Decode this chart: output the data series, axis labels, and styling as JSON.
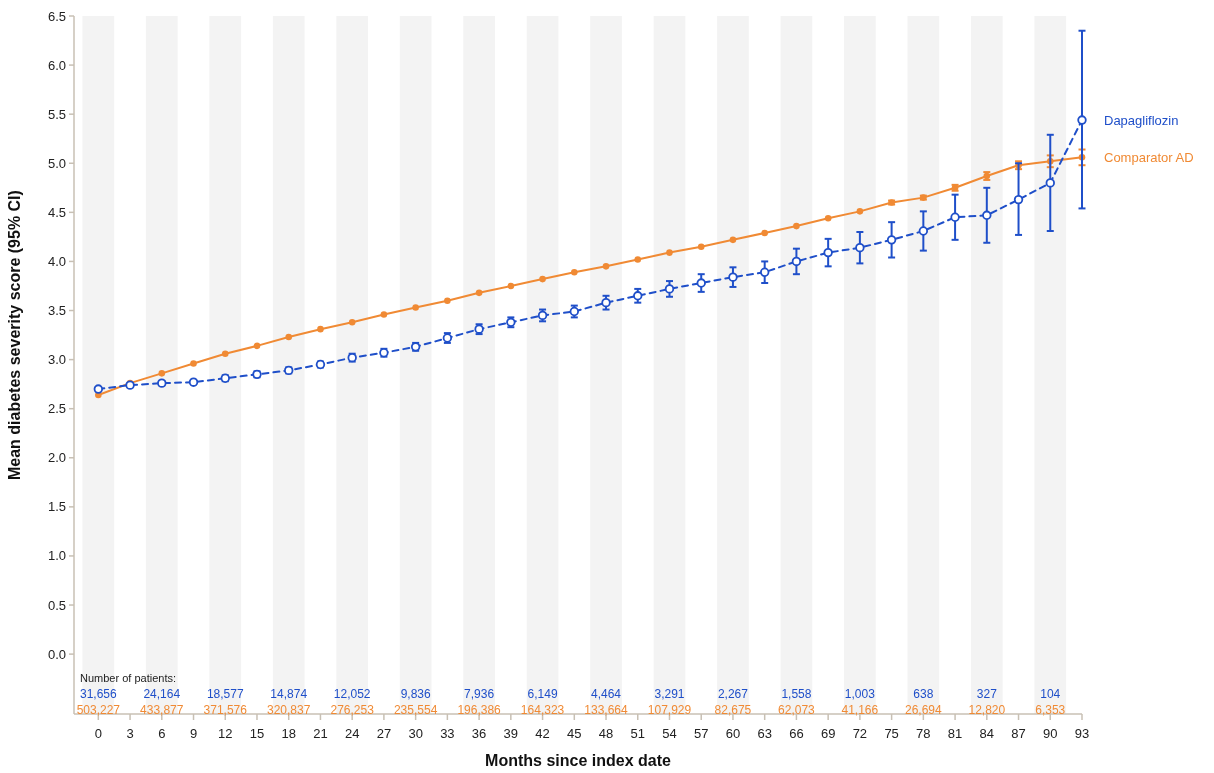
{
  "chart_data": {
    "type": "line",
    "xlabel": "Months since index date",
    "ylabel": "Mean diabetes severity score (95% CI)",
    "x": [
      0,
      3,
      6,
      9,
      12,
      15,
      18,
      21,
      24,
      27,
      30,
      33,
      36,
      39,
      42,
      45,
      48,
      51,
      54,
      57,
      60,
      63,
      66,
      69,
      72,
      75,
      78,
      81,
      84,
      87,
      90,
      93
    ],
    "xlim": [
      -2.3,
      93
    ],
    "xticks": [
      0,
      3,
      6,
      9,
      12,
      15,
      18,
      21,
      24,
      27,
      30,
      33,
      36,
      39,
      42,
      45,
      48,
      51,
      54,
      57,
      60,
      63,
      66,
      69,
      72,
      75,
      78,
      81,
      84,
      87,
      90,
      93
    ],
    "ylim": [
      -0.61,
      6.5
    ],
    "yticks": [
      {
        "value": 0,
        "label": "0.0"
      },
      0.5,
      {
        "value": 1,
        "label": "1.0"
      },
      1.5,
      {
        "value": 2,
        "label": "2.0"
      },
      2.5,
      {
        "value": 3,
        "label": "3.0"
      },
      3.5,
      {
        "value": 4,
        "label": "4.0"
      },
      4.5,
      {
        "value": 5,
        "label": "5.0"
      },
      5.5,
      {
        "value": 6,
        "label": "6.0"
      },
      6.5
    ],
    "grid": false,
    "legend": "right",
    "marker": "circle",
    "series": [
      {
        "name": "Dapagliflozin",
        "color": "#1f4fc9",
        "line_style": "dashed",
        "values": [
          2.7,
          2.74,
          2.76,
          2.77,
          2.81,
          2.85,
          2.89,
          2.95,
          3.02,
          3.07,
          3.13,
          3.22,
          3.31,
          3.38,
          3.45,
          3.49,
          3.58,
          3.65,
          3.72,
          3.78,
          3.84,
          3.89,
          4.0,
          4.09,
          4.14,
          4.22,
          4.31,
          4.45,
          4.47,
          4.63,
          4.8,
          5.44
        ],
        "errors": [
          0.02,
          0.02,
          0.02,
          0.02,
          0.03,
          0.03,
          0.03,
          0.03,
          0.04,
          0.04,
          0.04,
          0.05,
          0.05,
          0.05,
          0.06,
          0.06,
          0.07,
          0.07,
          0.08,
          0.09,
          0.1,
          0.11,
          0.13,
          0.14,
          0.16,
          0.18,
          0.2,
          0.23,
          0.28,
          [
            4.27,
            5.0
          ],
          [
            4.31,
            5.29
          ],
          [
            4.54,
            6.35
          ]
        ]
      },
      {
        "name": "Comparator AD",
        "color": "#f08a34",
        "line_style": "solid",
        "values": [
          2.64,
          2.76,
          2.86,
          2.96,
          3.06,
          3.14,
          3.23,
          3.31,
          3.38,
          3.46,
          3.53,
          3.6,
          3.68,
          3.75,
          3.82,
          3.89,
          3.95,
          4.02,
          4.09,
          4.15,
          4.22,
          4.29,
          4.36,
          4.44,
          4.51,
          4.6,
          4.65,
          4.75,
          4.87,
          4.98,
          5.02,
          5.06
        ],
        "errors": [
          null,
          null,
          null,
          null,
          null,
          null,
          null,
          null,
          null,
          null,
          null,
          null,
          null,
          null,
          null,
          null,
          null,
          null,
          null,
          null,
          null,
          null,
          null,
          null,
          null,
          0.02,
          0.02,
          0.03,
          0.04,
          0.04,
          0.06,
          0.08
        ]
      }
    ],
    "bands": [
      {
        "axis": "x",
        "from": -1.5,
        "to": 1.5,
        "color": "#f3f3f3"
      },
      {
        "axis": "x",
        "from": 4.5,
        "to": 7.5,
        "color": "#f3f3f3"
      },
      {
        "axis": "x",
        "from": 10.5,
        "to": 13.5,
        "color": "#f3f3f3"
      },
      {
        "axis": "x",
        "from": 16.5,
        "to": 19.5,
        "color": "#f3f3f3"
      },
      {
        "axis": "x",
        "from": 22.5,
        "to": 25.5,
        "color": "#f3f3f3"
      },
      {
        "axis": "x",
        "from": 28.5,
        "to": 31.5,
        "color": "#f3f3f3"
      },
      {
        "axis": "x",
        "from": 34.5,
        "to": 37.5,
        "color": "#f3f3f3"
      },
      {
        "axis": "x",
        "from": 40.5,
        "to": 43.5,
        "color": "#f3f3f3"
      },
      {
        "axis": "x",
        "from": 46.5,
        "to": 49.5,
        "color": "#f3f3f3"
      },
      {
        "axis": "x",
        "from": 52.5,
        "to": 55.5,
        "color": "#f3f3f3"
      },
      {
        "axis": "x",
        "from": 58.5,
        "to": 61.5,
        "color": "#f3f3f3"
      },
      {
        "axis": "x",
        "from": 64.5,
        "to": 67.5,
        "color": "#f3f3f3"
      },
      {
        "axis": "x",
        "from": 70.5,
        "to": 73.5,
        "color": "#f3f3f3"
      },
      {
        "axis": "x",
        "from": 76.5,
        "to": 79.5,
        "color": "#f3f3f3"
      },
      {
        "axis": "x",
        "from": 82.5,
        "to": 85.5,
        "color": "#f3f3f3"
      },
      {
        "axis": "x",
        "from": 88.5,
        "to": 91.5,
        "color": "#f3f3f3"
      }
    ],
    "annotations": [
      "Number of patients:",
      "31,656",
      "24,164",
      "18,577",
      "14,874",
      "12,052",
      "9,836",
      "7,936",
      "6,149",
      "4,464",
      "3,291",
      "2,267",
      "1,558",
      "1,003",
      "638",
      "327",
      "104",
      "503,227",
      "433,877",
      "371,576",
      "320,837",
      "276,253",
      "235,554",
      "196,386",
      "164,323",
      "133,664",
      "107,929",
      "82,675",
      "62,073",
      "41,166",
      "26,694",
      "12,820",
      "6,353"
    ]
  }
}
